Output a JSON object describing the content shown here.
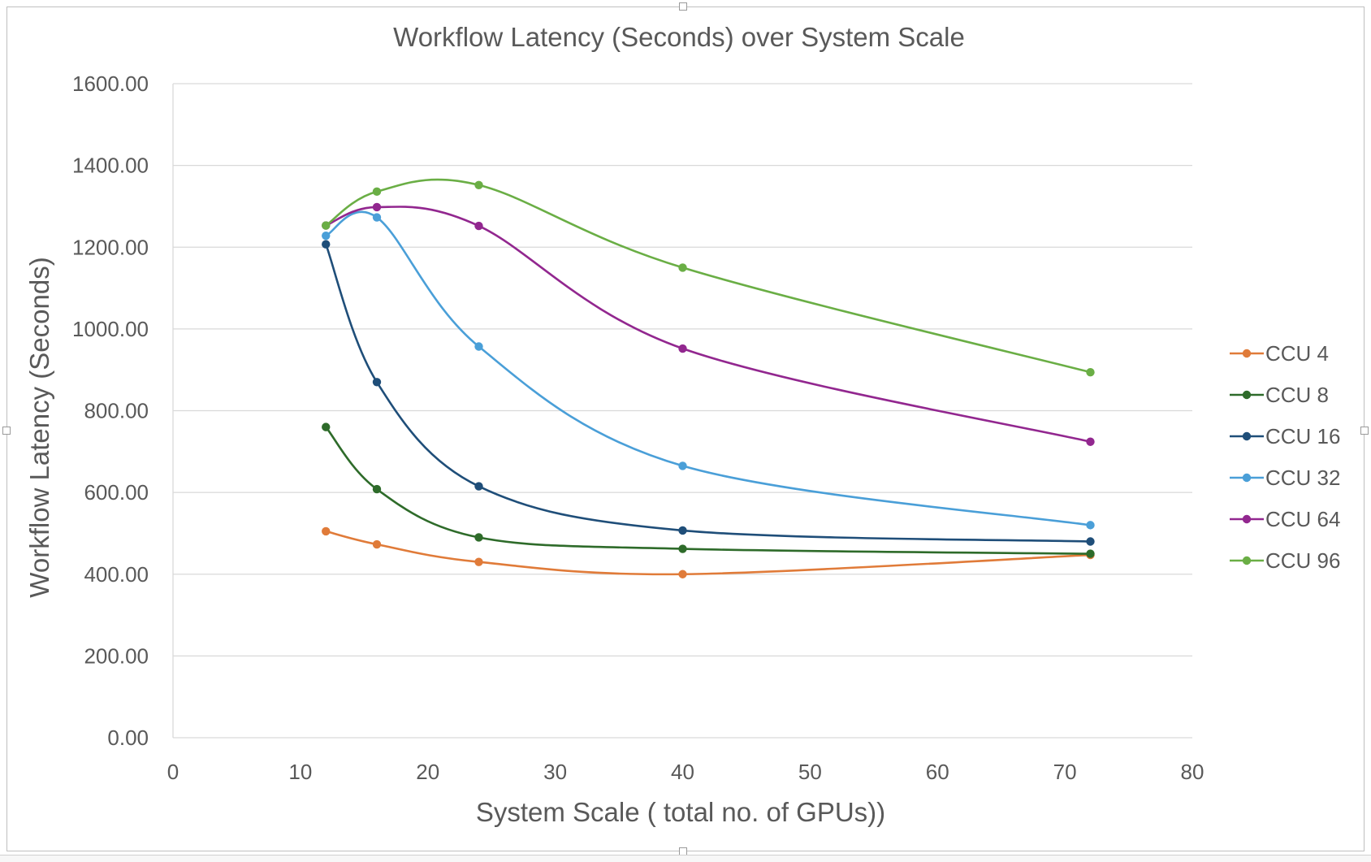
{
  "chart_data": {
    "type": "line",
    "title": "Workflow Latency (Seconds) over System Scale",
    "xlabel": "System Scale ( total no. of GPUs))",
    "ylabel": "Workflow Latency (Seconds)",
    "xlim": [
      0,
      80
    ],
    "ylim": [
      0,
      1600
    ],
    "x_ticks": [
      0,
      10,
      20,
      30,
      40,
      50,
      60,
      70,
      80
    ],
    "x_tick_labels": [
      "0",
      "10",
      "20",
      "30",
      "40",
      "50",
      "60",
      "70",
      "80"
    ],
    "y_ticks": [
      0,
      200,
      400,
      600,
      800,
      1000,
      1200,
      1400,
      1600
    ],
    "y_tick_labels": [
      "0.00",
      "200.00",
      "400.00",
      "600.00",
      "800.00",
      "1000.00",
      "1200.00",
      "1400.00",
      "1600.00"
    ],
    "grid": "horizontal",
    "smooth": true,
    "legend_position": "right",
    "x": [
      12,
      16,
      24,
      40,
      72
    ],
    "series": [
      {
        "name": "CCU 4",
        "color": "#E07B39",
        "values": [
          505,
          473,
          430,
          400,
          447
        ]
      },
      {
        "name": "CCU 8",
        "color": "#2E6B2A",
        "values": [
          760,
          608,
          490,
          462,
          450
        ]
      },
      {
        "name": "CCU 16",
        "color": "#1F4E79",
        "values": [
          1207,
          870,
          615,
          507,
          480
        ]
      },
      {
        "name": "CCU 32",
        "color": "#4A9FD8",
        "values": [
          1228,
          1273,
          957,
          665,
          520
        ]
      },
      {
        "name": "CCU 64",
        "color": "#92278F",
        "values": [
          1253,
          1298,
          1252,
          952,
          724
        ]
      },
      {
        "name": "CCU 96",
        "color": "#6AAE45",
        "values": [
          1253,
          1336,
          1352,
          1150,
          894
        ]
      }
    ]
  }
}
